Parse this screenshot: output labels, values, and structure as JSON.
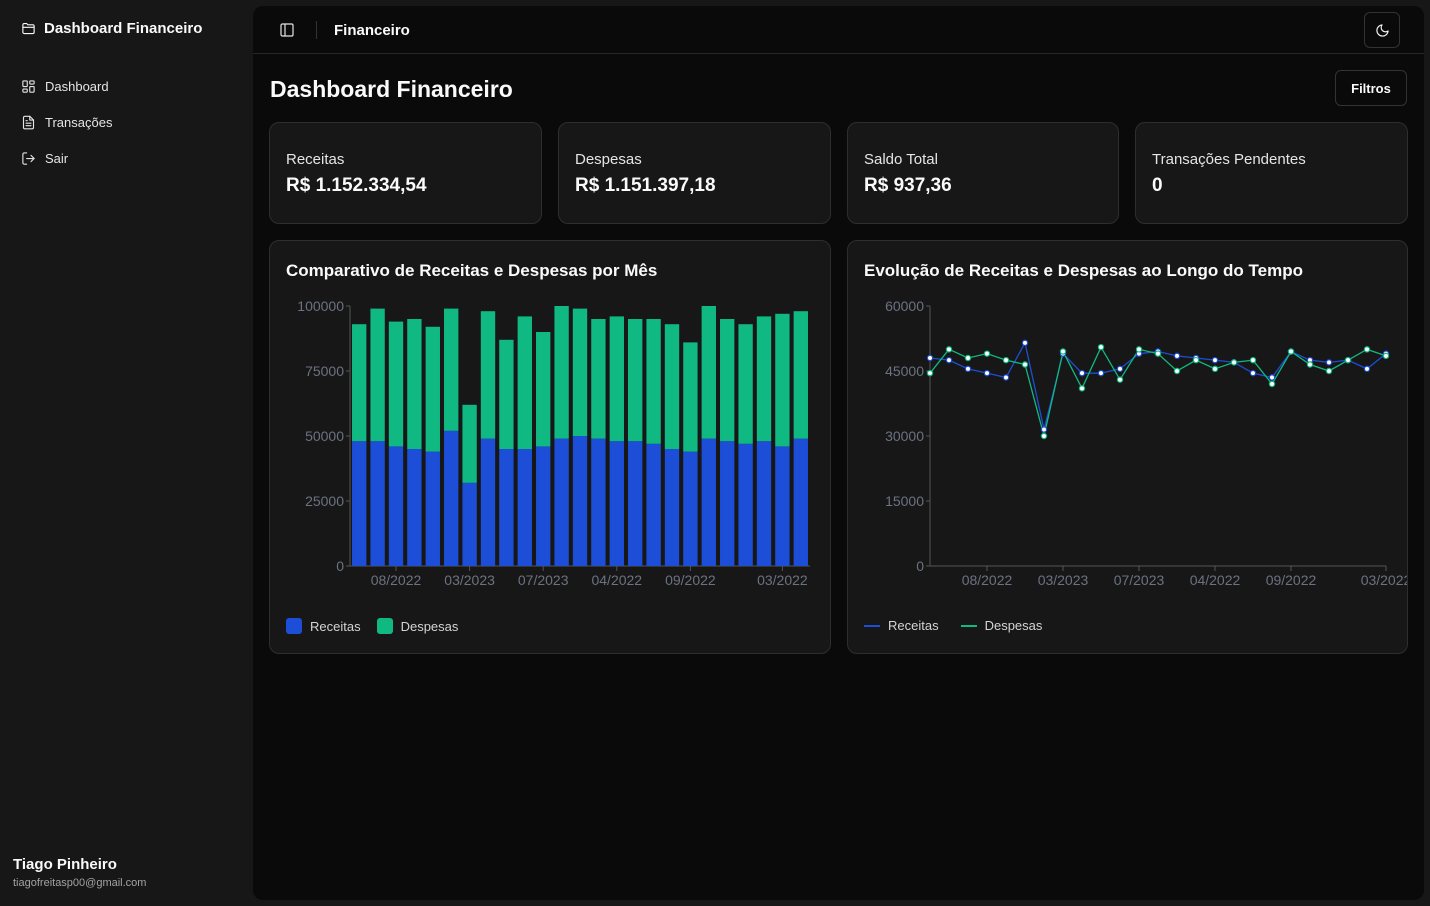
{
  "sidebar": {
    "brand": "Dashboard Financeiro",
    "items": [
      {
        "label": "Dashboard",
        "icon": "layout-grid-icon"
      },
      {
        "label": "Transações",
        "icon": "file-text-icon"
      },
      {
        "label": "Sair",
        "icon": "log-out-icon"
      }
    ],
    "user": {
      "name": "Tiago Pinheiro",
      "email": "tiagofreitasp00@gmail.com"
    }
  },
  "header": {
    "title": "Financeiro",
    "toggle_icon": "panel-left-icon",
    "theme_icon": "moon-icon"
  },
  "page": {
    "title": "Dashboard Financeiro",
    "filters_label": "Filtros"
  },
  "stats": [
    {
      "label": "Receitas",
      "value": "R$ 1.152.334,54"
    },
    {
      "label": "Despesas",
      "value": "R$ 1.151.397,18"
    },
    {
      "label": "Saldo Total",
      "value": "R$ 937,36"
    },
    {
      "label": "Transações Pendentes",
      "value": "0"
    }
  ],
  "colors": {
    "receitas": "#1d4ed8",
    "despesas": "#10b981",
    "background": "#0a0a0a",
    "card": "#171717"
  },
  "chart_data": [
    {
      "type": "bar",
      "stacked": true,
      "title": "Comparativo de Receitas e Despesas por Mês",
      "x_tick_labels": [
        "08/2022",
        "03/2023",
        "07/2023",
        "04/2022",
        "09/2022",
        "03/2022"
      ],
      "y_ticks": [
        0,
        25000,
        50000,
        75000,
        100000
      ],
      "ylim": [
        0,
        100000
      ],
      "series": [
        {
          "name": "Receitas",
          "color": "#1d4ed8",
          "values": [
            48000,
            48000,
            46000,
            45000,
            44000,
            52000,
            32000,
            49000,
            45000,
            45000,
            46000,
            49000,
            50000,
            49000,
            48000,
            48000,
            47000,
            45000,
            44000,
            49000,
            48000,
            47000,
            48000,
            46000,
            49000
          ]
        },
        {
          "name": "Despesas",
          "color": "#10b981",
          "values": [
            45000,
            51000,
            48000,
            50000,
            48000,
            47000,
            30000,
            49000,
            42000,
            51000,
            44000,
            51000,
            49000,
            46000,
            48000,
            47000,
            48000,
            48000,
            42000,
            51000,
            47000,
            46000,
            48000,
            51000,
            49000
          ]
        }
      ],
      "legend": [
        "Receitas",
        "Despesas"
      ]
    },
    {
      "type": "line",
      "title": "Evolução de Receitas e Despesas ao Longo do Tempo",
      "x_tick_labels": [
        "08/2022",
        "03/2023",
        "07/2023",
        "04/2022",
        "09/2022",
        "03/2022"
      ],
      "y_ticks": [
        0,
        15000,
        30000,
        45000,
        60000
      ],
      "ylim": [
        0,
        60000
      ],
      "series": [
        {
          "name": "Receitas",
          "color": "#1d4ed8",
          "values": [
            48000,
            47500,
            45500,
            44500,
            43500,
            51500,
            31500,
            49000,
            44500,
            44500,
            45500,
            49000,
            49500,
            48500,
            48000,
            47500,
            47000,
            44500,
            43500,
            49500,
            47500,
            47000,
            47500,
            45500,
            49000
          ]
        },
        {
          "name": "Despesas",
          "color": "#10b981",
          "values": [
            44500,
            50000,
            48000,
            49000,
            47500,
            46500,
            30000,
            49500,
            41000,
            50500,
            43000,
            50000,
            49000,
            45000,
            47500,
            45500,
            47000,
            47500,
            42000,
            49500,
            46500,
            45000,
            47500,
            50000,
            48500
          ]
        }
      ],
      "legend": [
        "Receitas",
        "Despesas"
      ]
    }
  ]
}
